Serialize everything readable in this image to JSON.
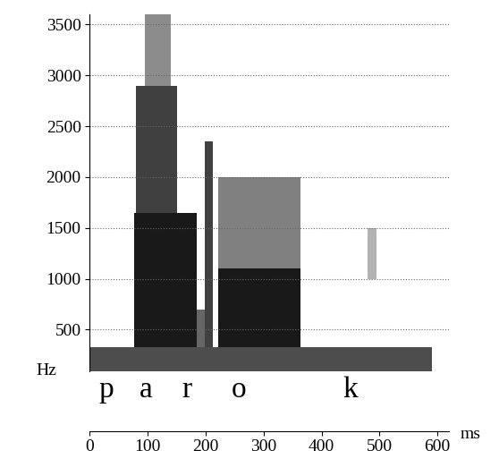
{
  "chart_data": {
    "type": "spectrogram",
    "xlabel": "ms",
    "ylabel": "Hz",
    "xlim": [
      0,
      620
    ],
    "xticks": [
      0,
      100,
      200,
      300,
      400,
      500,
      600
    ],
    "ylim": [
      90,
      3600
    ],
    "yticks": [
      500,
      1000,
      1500,
      2000,
      2500,
      3000,
      3500
    ],
    "grid": true,
    "bands": [
      {
        "start": 0,
        "end": 590,
        "low": 90,
        "high": 330,
        "level": 0.7
      },
      {
        "start": 77,
        "end": 185,
        "low": 330,
        "high": 1650,
        "level": 0.9
      },
      {
        "start": 80,
        "end": 150,
        "low": 1650,
        "high": 2900,
        "level": 0.75
      },
      {
        "start": 95,
        "end": 140,
        "low": 2900,
        "high": 3600,
        "level": 0.45
      },
      {
        "start": 185,
        "end": 198,
        "low": 330,
        "high": 700,
        "level": 0.6
      },
      {
        "start": 198,
        "end": 212,
        "low": 330,
        "high": 2350,
        "level": 0.75
      },
      {
        "start": 222,
        "end": 363,
        "low": 330,
        "high": 1100,
        "level": 0.9
      },
      {
        "start": 222,
        "end": 363,
        "low": 1100,
        "high": 2000,
        "level": 0.5
      },
      {
        "start": 480,
        "end": 495,
        "low": 1000,
        "high": 1500,
        "level": 0.3
      }
    ],
    "annotations": [
      {
        "text": "p",
        "x": 15
      },
      {
        "text": "a",
        "x": 86
      },
      {
        "text": "r",
        "x": 158
      },
      {
        "text": "o",
        "x": 244
      },
      {
        "text": "k",
        "x": 437
      }
    ]
  }
}
